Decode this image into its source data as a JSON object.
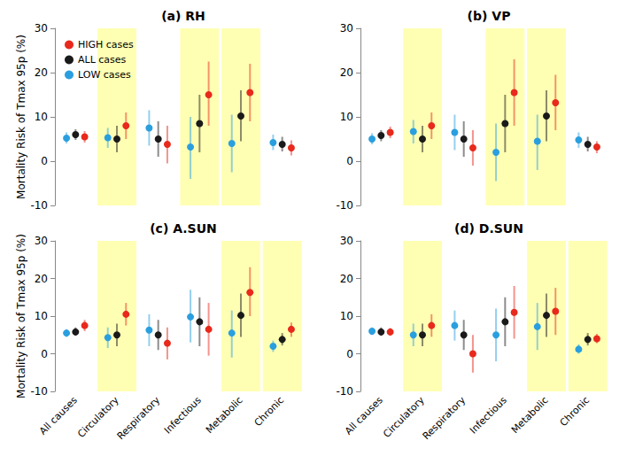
{
  "chart_data": [
    {
      "type": "scatter",
      "title": "(a) RH",
      "ylabel": "Mortality Risk of Tmax 95p (%)",
      "categories": [
        "All causes",
        "Circulatory",
        "Respiratory",
        "Infectious",
        "Metabolic",
        "Chronic"
      ],
      "highlight": [
        "Circulatory",
        "Infectious",
        "Metabolic"
      ],
      "ylim": [
        -10,
        30
      ],
      "yticks": [
        -10,
        0,
        10,
        20,
        30
      ],
      "grid": false,
      "tick_labels": "y",
      "legend": "upper left",
      "series": [
        {
          "name": "HIGH cases",
          "color": "#e8291c",
          "values": [
            5.5,
            8,
            3.8,
            15,
            15.5,
            3
          ],
          "ci_low": [
            4.2,
            5,
            -0.5,
            8,
            9,
            1.3
          ],
          "ci_high": [
            6.8,
            11,
            8,
            22.5,
            22,
            4.7
          ]
        },
        {
          "name": "ALL cases",
          "color": "#1a1a1a",
          "values": [
            6,
            5,
            5,
            8.5,
            10.2,
            3.8
          ],
          "ci_low": [
            4.8,
            2,
            1,
            2,
            4.5,
            2.2
          ],
          "ci_high": [
            7.2,
            8,
            9,
            15,
            16,
            5.5
          ]
        },
        {
          "name": "LOW cases",
          "color": "#2a9fdf",
          "values": [
            5.2,
            5.3,
            7.5,
            3.2,
            4,
            4.2
          ],
          "ci_low": [
            4,
            3,
            3.5,
            -4,
            -2.5,
            2.5
          ],
          "ci_high": [
            6.5,
            7.5,
            11.5,
            10,
            10.5,
            6
          ]
        }
      ]
    },
    {
      "type": "scatter",
      "title": "(b) VP",
      "categories": [
        "All causes",
        "Circulatory",
        "Respiratory",
        "Infectious",
        "Metabolic",
        "Chronic"
      ],
      "highlight": [
        "Circulatory",
        "Infectious",
        "Metabolic"
      ],
      "ylim": [
        -10,
        30
      ],
      "yticks": [
        -10,
        0,
        10,
        20,
        30
      ],
      "grid": false,
      "tick_labels": "y",
      "series": [
        {
          "name": "HIGH cases",
          "color": "#e8291c",
          "values": [
            6.5,
            8,
            3,
            15.5,
            13.2,
            3.2
          ],
          "ci_low": [
            5.2,
            5,
            -1,
            8,
            7,
            1.8
          ],
          "ci_high": [
            7.8,
            11,
            7,
            23,
            19.5,
            4.5
          ]
        },
        {
          "name": "ALL cases",
          "color": "#1a1a1a",
          "values": [
            5.8,
            5,
            5,
            8.5,
            10.2,
            3.8
          ],
          "ci_low": [
            4.5,
            2,
            1,
            2,
            4.5,
            2.2
          ],
          "ci_high": [
            7,
            8,
            9,
            15,
            16,
            5.5
          ]
        },
        {
          "name": "LOW cases",
          "color": "#2a9fdf",
          "values": [
            5,
            6.7,
            6.5,
            2,
            4.5,
            4.8
          ],
          "ci_low": [
            3.8,
            4,
            2.5,
            -4.5,
            -2,
            3
          ],
          "ci_high": [
            6.3,
            9.3,
            10.5,
            8.5,
            10.5,
            6.5
          ]
        }
      ]
    },
    {
      "type": "scatter",
      "title": "(c) A.SUN",
      "ylabel": "Mortality Risk of Tmax 95p (%)",
      "categories": [
        "All causes",
        "Circulatory",
        "Respiratory",
        "Infectious",
        "Metabolic",
        "Chronic"
      ],
      "highlight": [
        "Circulatory",
        "Metabolic",
        "Chronic"
      ],
      "ylim": [
        -10,
        30
      ],
      "yticks": [
        -10,
        0,
        10,
        20,
        30
      ],
      "grid": false,
      "series": [
        {
          "name": "HIGH cases",
          "color": "#e8291c",
          "values": [
            7.5,
            10.5,
            2.8,
            6.5,
            16.3,
            6.5
          ],
          "ci_low": [
            6,
            7.5,
            -1.5,
            -0.5,
            10,
            4.5
          ],
          "ci_high": [
            9,
            13.5,
            7,
            13.5,
            23,
            8.3
          ]
        },
        {
          "name": "ALL cases",
          "color": "#1a1a1a",
          "values": [
            5.8,
            5,
            5,
            8.5,
            10.2,
            3.8
          ],
          "ci_low": [
            4.8,
            2,
            1,
            2,
            4.5,
            2.2
          ],
          "ci_high": [
            7,
            8,
            9,
            15,
            16,
            5.5
          ]
        },
        {
          "name": "LOW cases",
          "color": "#2a9fdf",
          "values": [
            5.5,
            4.3,
            6.3,
            9.8,
            5.5,
            2
          ],
          "ci_low": [
            4.5,
            1.5,
            2,
            3,
            -1,
            0.5
          ],
          "ci_high": [
            6.5,
            7,
            10.5,
            17,
            11.5,
            3.5
          ]
        }
      ]
    },
    {
      "type": "scatter",
      "title": "(d) D.SUN",
      "categories": [
        "All causes",
        "Circulatory",
        "Respiratory",
        "Infectious",
        "Metabolic",
        "Chronic"
      ],
      "highlight": [
        "Circulatory",
        "Metabolic",
        "Chronic"
      ],
      "ylim": [
        -10,
        30
      ],
      "yticks": [
        -10,
        0,
        10,
        20,
        30
      ],
      "grid": false,
      "series": [
        {
          "name": "HIGH cases",
          "color": "#e8291c",
          "values": [
            5.8,
            7.5,
            0,
            11,
            11.3,
            4
          ],
          "ci_low": [
            4.8,
            4.5,
            -5,
            4,
            5,
            2.8
          ],
          "ci_high": [
            6.8,
            10.5,
            5,
            18,
            17.5,
            5.3
          ]
        },
        {
          "name": "ALL cases",
          "color": "#1a1a1a",
          "values": [
            5.8,
            5,
            5,
            8.5,
            10.2,
            3.8
          ],
          "ci_low": [
            4.8,
            2,
            1,
            2,
            4.5,
            2.2
          ],
          "ci_high": [
            7,
            8,
            9,
            15,
            16,
            5.5
          ]
        },
        {
          "name": "LOW cases",
          "color": "#2a9fdf",
          "values": [
            6,
            5,
            7.5,
            5,
            7.2,
            1.2
          ],
          "ci_low": [
            5,
            2,
            3.5,
            -2,
            1,
            0
          ],
          "ci_high": [
            7,
            8,
            11.5,
            12,
            13.5,
            2.5
          ]
        }
      ]
    }
  ]
}
